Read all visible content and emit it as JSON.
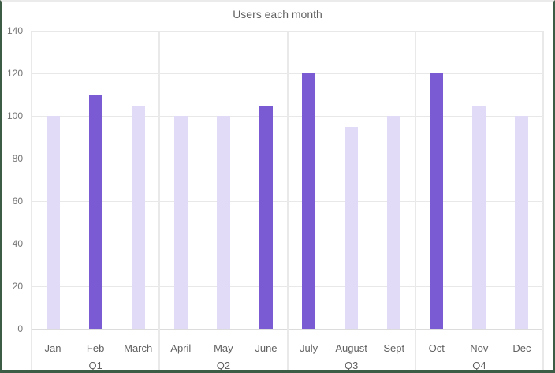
{
  "window": {
    "frame_border_color": "#3d5c46",
    "background": "#ffffff"
  },
  "chart_data": {
    "type": "bar",
    "title": "Users each month",
    "categories": [
      "Jan",
      "Feb",
      "March",
      "April",
      "May",
      "June",
      "July",
      "August",
      "Sept",
      "Oct",
      "Nov",
      "Dec"
    ],
    "values": [
      100,
      110,
      105,
      100,
      100,
      105,
      120,
      95,
      100,
      120,
      105,
      100
    ],
    "highlighted": [
      false,
      true,
      false,
      false,
      false,
      true,
      true,
      false,
      false,
      true,
      false,
      false
    ],
    "group_labels": [
      "Q1",
      "Q2",
      "Q3",
      "Q4"
    ],
    "months_per_group": 3,
    "xlabel": "",
    "ylabel": "",
    "ylim": [
      0,
      140
    ],
    "yticks": [
      0,
      20,
      40,
      60,
      80,
      100,
      120,
      140
    ],
    "grid": true,
    "legend_position": "none",
    "colors": {
      "bar_default": "#e2dbf7",
      "bar_highlight": "#7b5bd3",
      "gridline": "#e8e8e8",
      "y_tick_label": "#757575",
      "x_label": "#616161",
      "title": "#616161"
    }
  }
}
